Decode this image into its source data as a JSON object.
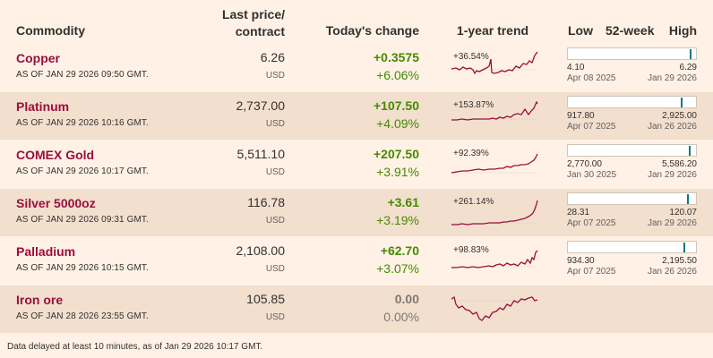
{
  "header": {
    "commodity": "Commodity",
    "last_price_line1": "Last price/",
    "last_price_line2": "contract",
    "todays_change": "Today's change",
    "trend": "1-year trend",
    "low": "Low",
    "week52": "52-week",
    "high": "High"
  },
  "rows": [
    {
      "name": "Copper",
      "asof": "AS OF JAN 29 2026 09:50 GMT.",
      "price": "6.26",
      "unit": "USD",
      "change": "+0.3575",
      "change_pct": "+6.06%",
      "direction": "up",
      "trend_label": "+36.54%",
      "low": "4.10",
      "low_date": "Apr 08 2025",
      "high": "6.29",
      "high_date": "Jan 29 2026",
      "range_position": 0.98
    },
    {
      "name": "Platinum",
      "asof": "AS OF JAN 29 2026 10:16 GMT.",
      "price": "2,737.00",
      "unit": "USD",
      "change": "+107.50",
      "change_pct": "+4.09%",
      "direction": "up",
      "trend_label": "+153.87%",
      "low": "917.80",
      "low_date": "Apr 07 2025",
      "high": "2,925.00",
      "high_date": "Jan 26 2026",
      "range_position": 0.91
    },
    {
      "name": "COMEX Gold",
      "asof": "AS OF JAN 29 2026 10:17 GMT.",
      "price": "5,511.10",
      "unit": "USD",
      "change": "+207.50",
      "change_pct": "+3.91%",
      "direction": "up",
      "trend_label": "+92.39%",
      "low": "2,770.00",
      "low_date": "Jan 30 2025",
      "high": "5,586.20",
      "high_date": "Jan 29 2026",
      "range_position": 0.97
    },
    {
      "name": "Silver 5000oz",
      "asof": "AS OF JAN 29 2026 09:31 GMT.",
      "price": "116.78",
      "unit": "USD",
      "change": "+3.61",
      "change_pct": "+3.19%",
      "direction": "up",
      "trend_label": "+261.14%",
      "low": "28.31",
      "low_date": "Apr 07 2025",
      "high": "120.07",
      "high_date": "Jan 29 2026",
      "range_position": 0.96
    },
    {
      "name": "Palladium",
      "asof": "AS OF JAN 29 2026 10:15 GMT.",
      "price": "2,108.00",
      "unit": "USD",
      "change": "+62.70",
      "change_pct": "+3.07%",
      "direction": "up",
      "trend_label": "+98.83%",
      "low": "934.30",
      "low_date": "Apr 07 2025",
      "high": "2,195.50",
      "high_date": "Jan 26 2026",
      "range_position": 0.93
    },
    {
      "name": "Iron ore",
      "asof": "AS OF JAN 28 2026 23:55 GMT.",
      "price": "105.85",
      "unit": "USD",
      "change": "0.00",
      "change_pct": "0.00%",
      "direction": "flat",
      "trend_label": "",
      "low": "",
      "low_date": "",
      "high": "",
      "high_date": "",
      "range_position": null
    }
  ],
  "footer": "Data delayed at least 10 minutes, as of Jan 29 2026 10:17 GMT.",
  "colors": {
    "background": "#fff1e5",
    "row_alt": "#f2dfce",
    "name": "#990f3d",
    "positive": "#458b00",
    "neutral": "#807973",
    "sparkline": "#990f3d",
    "range_marker": "#0d7680"
  }
}
